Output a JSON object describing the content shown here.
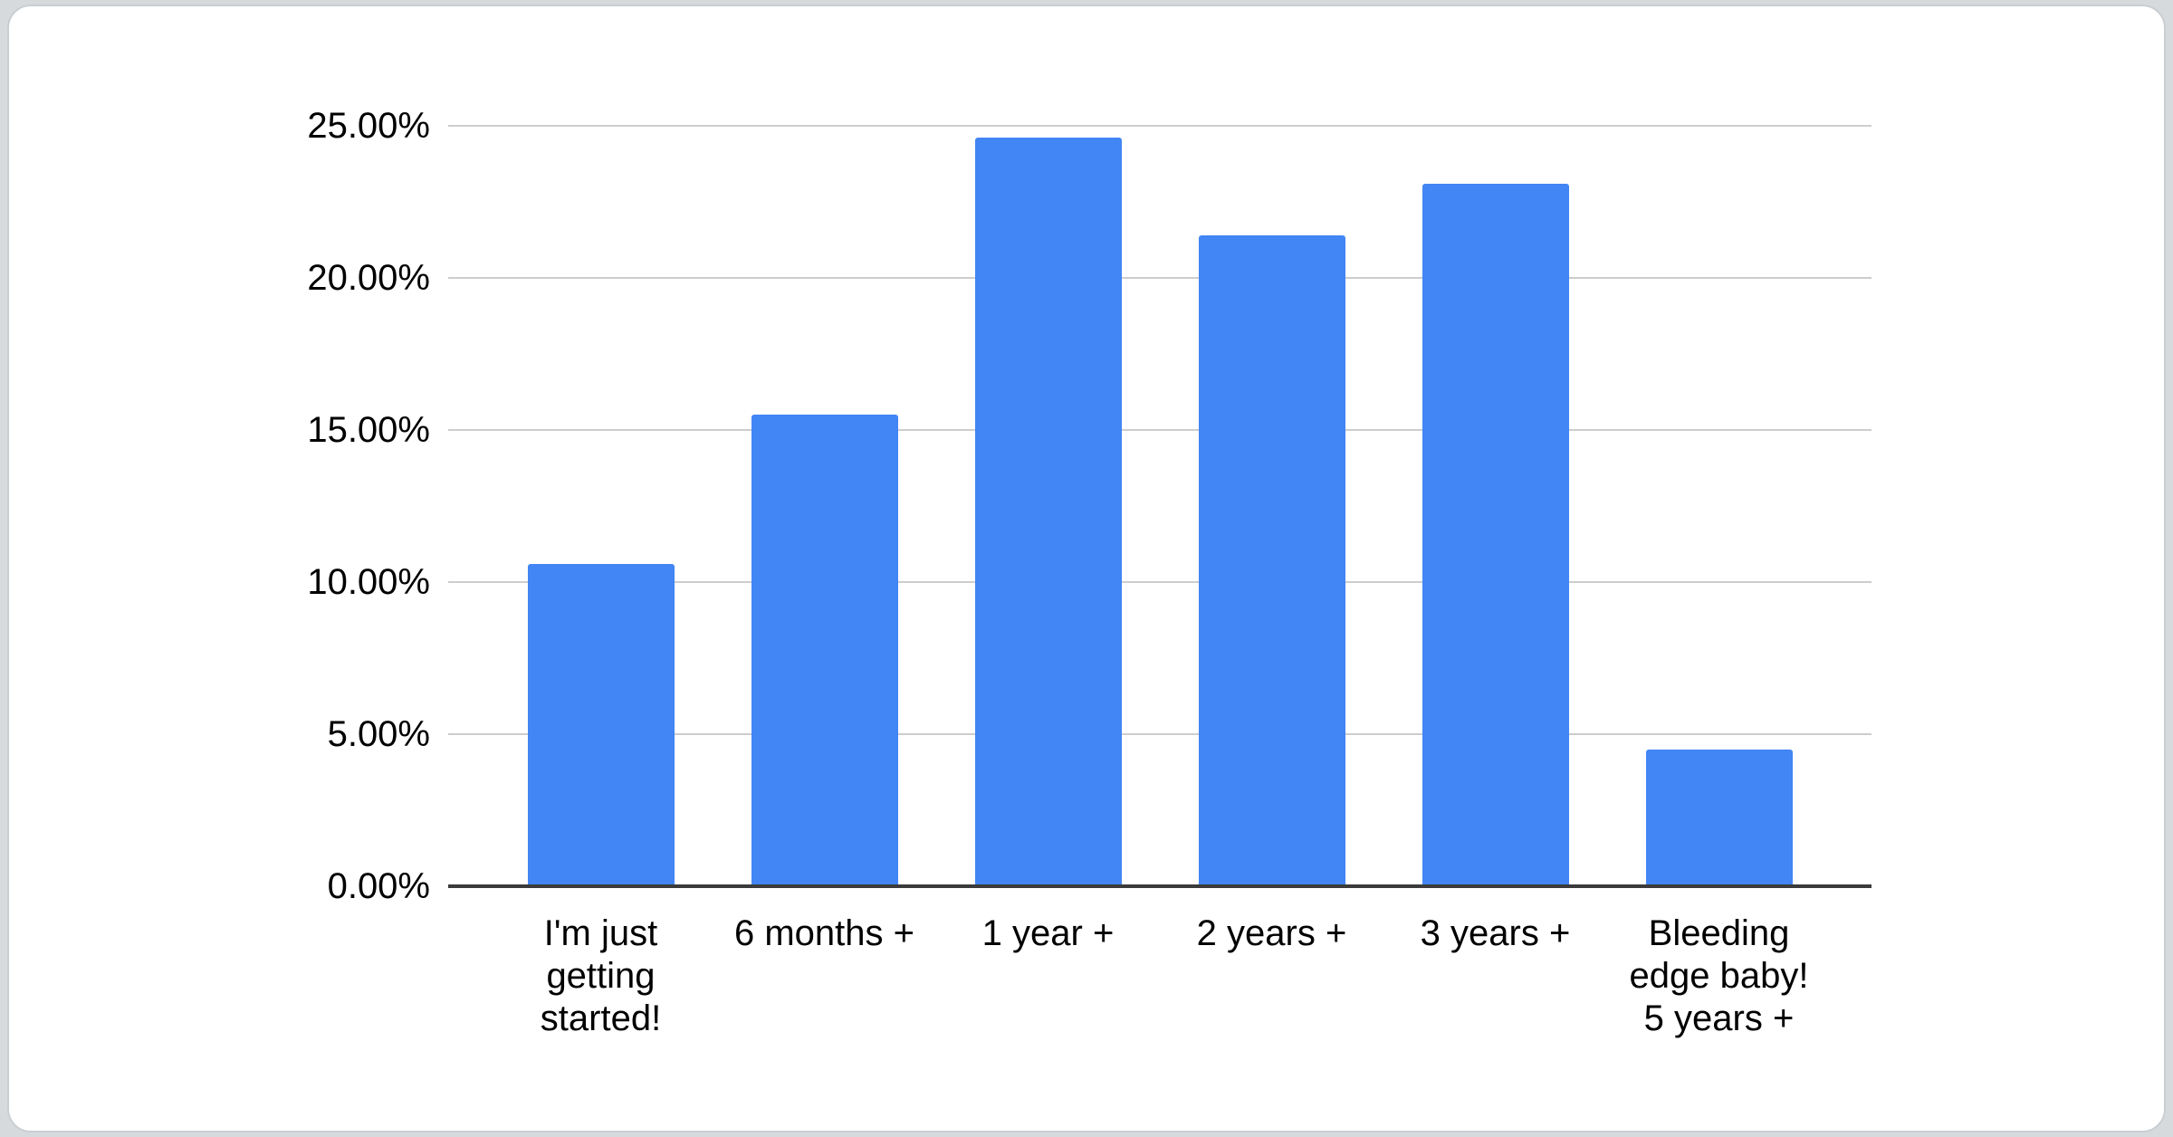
{
  "page": {
    "background_color": "#d6dadd",
    "card_background": "#ffffff",
    "card_border_color": "#c9ced2"
  },
  "chart_data": {
    "type": "bar",
    "title": "",
    "categories": [
      "I'm just\ngetting\nstarted!",
      "6 months +",
      "1 year +",
      "2 years +",
      "3 years +",
      "Bleeding\nedge baby!\n5 years +"
    ],
    "values": [
      10.6,
      15.5,
      24.6,
      21.4,
      23.1,
      4.5
    ],
    "value_unit": "%",
    "y_ticks": [
      {
        "value": 0,
        "label": "0.00%"
      },
      {
        "value": 5,
        "label": "5.00%"
      },
      {
        "value": 10,
        "label": "10.00%"
      },
      {
        "value": 15,
        "label": "15.00%"
      },
      {
        "value": 20,
        "label": "20.00%"
      },
      {
        "value": 25,
        "label": "25.00%"
      }
    ],
    "ylim": [
      0,
      25
    ],
    "xlabel": "",
    "ylabel": "",
    "grid": true,
    "legend": "none",
    "bar_color": "#4285f4",
    "gridline_color": "#cdcdcd",
    "axis_line_color": "#3b3b3b",
    "label_color": "#000000"
  }
}
